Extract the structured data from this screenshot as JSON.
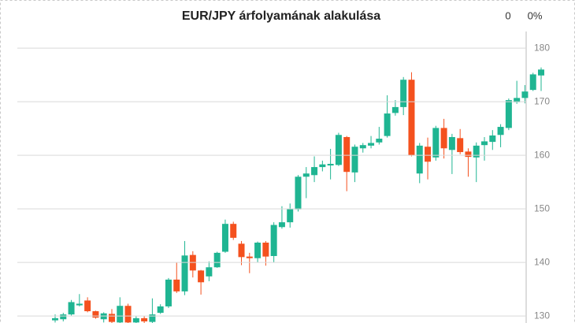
{
  "chart_data": {
    "type": "candlestick",
    "title": "EUR/JPY árfolyamának alakulása",
    "stats": [
      "0",
      "0%"
    ],
    "up_color": "#1fb592",
    "down_color": "#f4511e",
    "ylim": [
      128.7,
      183.1
    ],
    "yticks": [
      130,
      140,
      150,
      160,
      170,
      180
    ],
    "grid": true,
    "open": [
      129.2,
      129.4,
      130.3,
      132.0,
      132.9,
      130.9,
      129.4,
      130.4,
      128.8,
      131.9,
      128.8,
      129.6,
      128.9,
      130.6,
      131.8,
      136.8,
      134.6,
      141.4,
      138.5,
      137.4,
      139.1,
      142.0,
      147.2,
      143.5,
      141.1,
      140.8,
      143.7,
      141.2,
      146.6,
      147.5,
      149.9,
      156.0,
      156.3,
      157.8,
      158.1,
      158.2,
      163.4,
      156.8,
      161.3,
      161.8,
      162.4,
      163.6,
      167.9,
      169.0,
      174.1,
      156.6,
      161.6,
      159.6,
      165.1,
      161.0,
      163.2,
      160.7,
      159.6,
      161.9,
      162.5,
      163.8,
      165.1,
      169.9,
      170.7,
      172.2,
      174.9
    ],
    "high": [
      130.3,
      130.6,
      133.0,
      134.1,
      133.5,
      131.0,
      130.7,
      131.3,
      133.5,
      132.3,
      130.0,
      130.0,
      133.3,
      132.2,
      137.1,
      140.0,
      144.0,
      142.1,
      138.6,
      140.2,
      142.0,
      148.0,
      147.6,
      144.0,
      141.8,
      143.9,
      144.0,
      147.5,
      150.5,
      151.0,
      156.3,
      157.8,
      159.8,
      159.0,
      161.2,
      164.2,
      163.6,
      162.0,
      162.3,
      163.6,
      165.3,
      171.2,
      170.3,
      174.6,
      175.5,
      162.3,
      163.3,
      165.5,
      166.8,
      164.0,
      164.9,
      161.3,
      162.4,
      163.4,
      164.7,
      165.8,
      170.6,
      173.9,
      173.1,
      175.4,
      176.4
    ],
    "low": [
      128.8,
      129.0,
      130.1,
      131.8,
      130.7,
      129.5,
      128.8,
      128.7,
      128.7,
      128.7,
      128.7,
      128.7,
      128.7,
      130.4,
      131.5,
      134.3,
      133.9,
      137.2,
      134.0,
      136.5,
      139.0,
      141.8,
      144.2,
      139.5,
      138.0,
      140.0,
      139.4,
      140.0,
      146.3,
      146.5,
      149.5,
      152.0,
      155.0,
      157.0,
      155.5,
      158.0,
      153.3,
      155.0,
      160.5,
      161.3,
      162.0,
      163.3,
      167.4,
      167.5,
      159.8,
      154.8,
      155.5,
      159.0,
      159.4,
      156.5,
      160.2,
      156.0,
      155.0,
      159.0,
      161.0,
      161.5,
      164.7,
      169.6,
      169.7,
      172.0,
      172.0
    ],
    "close": [
      129.6,
      130.3,
      132.6,
      132.3,
      130.9,
      129.7,
      130.5,
      128.9,
      131.9,
      128.8,
      129.6,
      129.0,
      130.3,
      131.8,
      136.8,
      134.6,
      141.3,
      138.5,
      136.3,
      139.1,
      141.8,
      147.2,
      144.6,
      141.0,
      140.8,
      143.7,
      141.1,
      147.0,
      147.5,
      150.0,
      156.0,
      156.6,
      157.8,
      158.3,
      158.4,
      163.8,
      156.9,
      161.6,
      161.9,
      162.3,
      163.1,
      167.8,
      169.0,
      174.1,
      160.0,
      161.8,
      158.8,
      165.1,
      161.3,
      163.4,
      160.6,
      159.7,
      161.8,
      162.6,
      163.7,
      165.3,
      170.3,
      170.7,
      171.9,
      175.1,
      176.0
    ]
  }
}
